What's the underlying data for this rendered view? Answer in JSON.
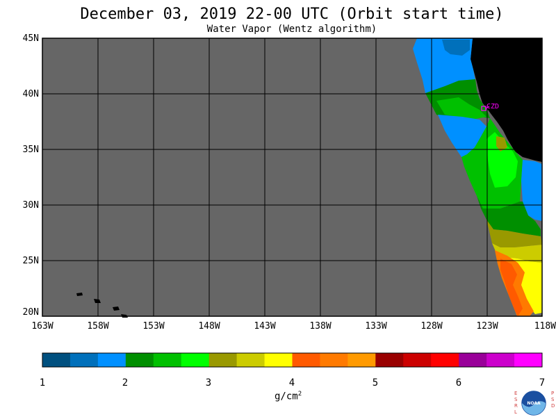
{
  "header": {
    "title": "December 03, 2019  22-00 UTC  (Orbit start time)",
    "subtitle": "Water Vapor (Wentz algorithm)"
  },
  "map": {
    "lat_labels": [
      "45N",
      "40N",
      "35N",
      "30N",
      "25N",
      "20N"
    ],
    "lon_labels": [
      "163W",
      "158W",
      "153W",
      "148W",
      "143W",
      "138W",
      "133W",
      "128W",
      "123W",
      "118W"
    ],
    "station_label": "CZD",
    "colors": {
      "no_data": "#666666",
      "land": "#000000",
      "grid": "#000000",
      "station": "#ff00ff"
    }
  },
  "colorbar": {
    "tick_labels": [
      "1",
      "2",
      "3",
      "4",
      "5",
      "6",
      "7"
    ],
    "units": "g/cm",
    "units_sup": "2",
    "colors": [
      "#00507f",
      "#0070bb",
      "#0090ff",
      "#008f00",
      "#00c000",
      "#00ff00",
      "#999900",
      "#cccc00",
      "#ffff00",
      "#ff5a00",
      "#ff7a00",
      "#ff9a00",
      "#990000",
      "#cc0000",
      "#ff0000",
      "#990099",
      "#cc00cc",
      "#ff00ff"
    ]
  },
  "logo": {
    "left_letters": "ESRL",
    "right_letters": "PSD",
    "center": "NOAA"
  }
}
